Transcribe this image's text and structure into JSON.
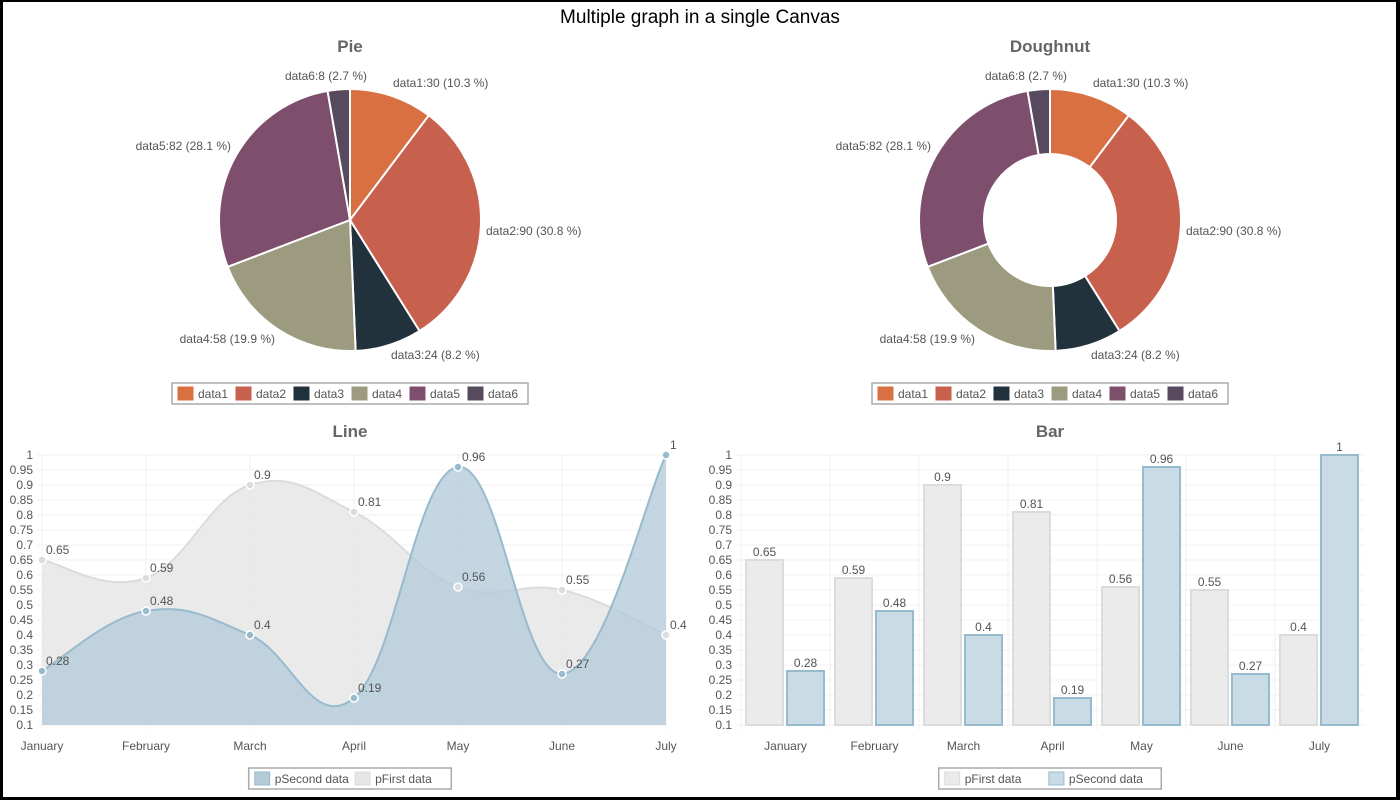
{
  "page_title": "Multiple graph in a single Canvas",
  "chart_data": [
    {
      "type": "pie",
      "title": "Pie",
      "labels": [
        "data1",
        "data2",
        "data3",
        "data4",
        "data5",
        "data6"
      ],
      "values": [
        30,
        90,
        24,
        58,
        82,
        8
      ],
      "slice_labels": [
        "data1:30 (10.3 %)",
        "data2:90 (30.8 %)",
        "data3:24 (8.2 %)",
        "data4:58 (19.9 %)",
        "data5:82 (28.1 %)",
        "data6:8 (2.7 %)"
      ],
      "colors": [
        "#d97041",
        "#c7604c",
        "#21323d",
        "#9d9b7f",
        "#7d4f6d",
        "#584a5e"
      ],
      "legend": [
        "data1",
        "data2",
        "data3",
        "data4",
        "data5",
        "data6"
      ],
      "legend_position": "bottom"
    },
    {
      "type": "doughnut",
      "title": "Doughnut",
      "labels": [
        "data1",
        "data2",
        "data3",
        "data4",
        "data5",
        "data6"
      ],
      "values": [
        30,
        90,
        24,
        58,
        82,
        8
      ],
      "slice_labels": [
        "data1:30 (10.3 %)",
        "data2:90 (30.8 %)",
        "data3:24 (8.2 %)",
        "data4:58 (19.9 %)",
        "data5:82 (28.1 %)",
        "data6:8 (2.7 %)"
      ],
      "colors": [
        "#d97041",
        "#c7604c",
        "#21323d",
        "#9d9b7f",
        "#7d4f6d",
        "#584a5e"
      ],
      "legend": [
        "data1",
        "data2",
        "data3",
        "data4",
        "data5",
        "data6"
      ],
      "legend_position": "bottom"
    },
    {
      "type": "line",
      "title": "Line",
      "categories": [
        "January",
        "February",
        "March",
        "April",
        "May",
        "June",
        "July"
      ],
      "yticks": [
        "1",
        "0.95",
        "0.9",
        "0.85",
        "0.8",
        "0.75",
        "0.7",
        "0.65",
        "0.6",
        "0.55",
        "0.5",
        "0.45",
        "0.4",
        "0.35",
        "0.3",
        "0.25",
        "0.2",
        "0.15",
        "0.1"
      ],
      "ylim": [
        0.1,
        1
      ],
      "grid": true,
      "series": [
        {
          "name": "pFirst data",
          "values": [
            0.65,
            0.59,
            0.9,
            0.81,
            0.56,
            0.55,
            0.4
          ],
          "labels": [
            "0.65",
            "0.59",
            "0.9",
            "0.81",
            "0.56",
            "0.55",
            "0.4"
          ],
          "stroke": "#dcdcdc",
          "fill": "#e6e6e6"
        },
        {
          "name": "pSecond data",
          "values": [
            0.28,
            0.48,
            0.4,
            0.19,
            0.96,
            0.27,
            1
          ],
          "labels": [
            "0.28",
            "0.48",
            "0.4",
            "0.19",
            "0.96",
            "0.27",
            "1"
          ],
          "stroke": "#97bbcd",
          "fill": "#b4ccd9"
        }
      ],
      "legend": [
        "pSecond data",
        "pFirst data"
      ],
      "legend_position": "bottom"
    },
    {
      "type": "bar",
      "title": "Bar",
      "categories": [
        "January",
        "February",
        "March",
        "April",
        "May",
        "June",
        "July"
      ],
      "yticks": [
        "1",
        "0.95",
        "0.9",
        "0.85",
        "0.8",
        "0.75",
        "0.7",
        "0.65",
        "0.6",
        "0.55",
        "0.5",
        "0.45",
        "0.4",
        "0.35",
        "0.3",
        "0.25",
        "0.2",
        "0.15",
        "0.1"
      ],
      "ylim": [
        0.1,
        1
      ],
      "grid": true,
      "series": [
        {
          "name": "pFirst data",
          "values": [
            0.65,
            0.59,
            0.9,
            0.81,
            0.56,
            0.55,
            0.4
          ],
          "labels": [
            "0.65",
            "0.59",
            "0.9",
            "0.81",
            "0.56",
            "0.55",
            "0.4"
          ],
          "stroke": "#dcdcdc",
          "fill": "#ebebeb"
        },
        {
          "name": "pSecond data",
          "values": [
            0.28,
            0.48,
            0.4,
            0.19,
            0.96,
            0.27,
            1
          ],
          "labels": [
            "0.28",
            "0.48",
            "0.4",
            "0.19",
            "0.96",
            "0.27",
            "1"
          ],
          "stroke": "#97bbcd",
          "fill": "#c9dce6"
        }
      ],
      "legend": [
        "pFirst data",
        "pSecond data"
      ],
      "legend_position": "bottom"
    }
  ]
}
